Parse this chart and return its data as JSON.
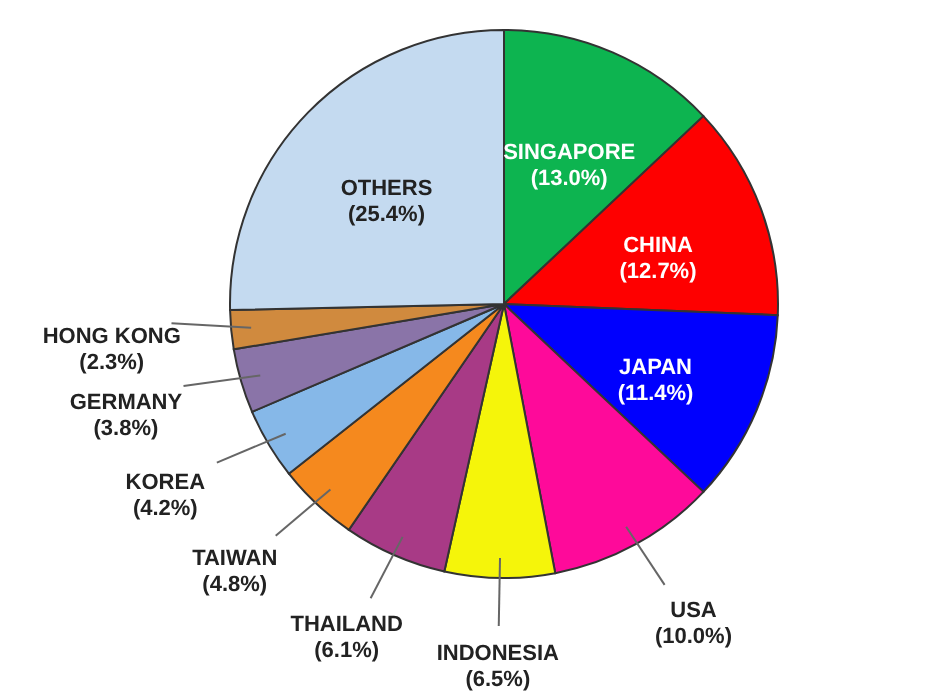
{
  "chart_data": {
    "type": "pie",
    "categories": [
      "SINGAPORE",
      "CHINA",
      "JAPAN",
      "USA",
      "INDONESIA",
      "THAILAND",
      "TAIWAN",
      "KOREA",
      "GERMANY",
      "HONG KONG",
      "OTHERS"
    ],
    "values": [
      13.0,
      12.7,
      11.4,
      10.0,
      6.5,
      6.1,
      4.8,
      4.2,
      3.8,
      2.3,
      25.4
    ],
    "value_labels": [
      "(13.0%)",
      "(12.7%)",
      "(11.4%)",
      "(10.0%)",
      "(6.5%)",
      "(6.1%)",
      "(4.8%)",
      "(4.2%)",
      "(3.8%)",
      "(2.3%)",
      "(25.4%)"
    ],
    "colors": [
      "#0db450",
      "#fe0000",
      "#0000fe",
      "#fe0a9a",
      "#f5f50a",
      "#a83a86",
      "#f5891e",
      "#86b8e8",
      "#8a74a8",
      "#d08a3e",
      "#c4daf0"
    ]
  }
}
